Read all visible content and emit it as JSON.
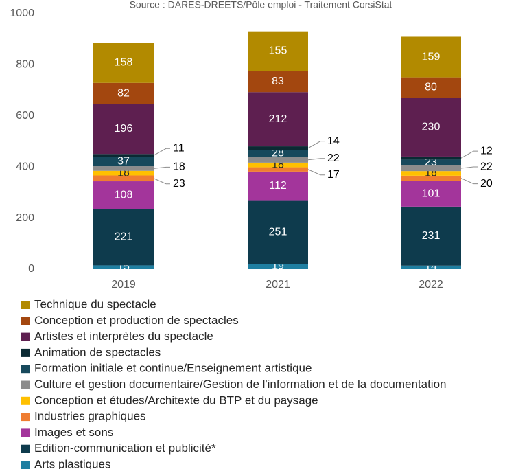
{
  "chart_data": {
    "type": "stacked_bar",
    "subtitle": "Source : DARES-DREETS/Pôle emploi - Traitement CorsiStat",
    "categories": [
      "2019",
      "2021",
      "2022"
    ],
    "ylim": [
      0,
      1000
    ],
    "yticks": [
      0,
      200,
      400,
      600,
      800,
      1000
    ],
    "series": [
      {
        "name": "Technique du spectacle",
        "color": "#b28a00",
        "values": [
          158,
          155,
          159
        ]
      },
      {
        "name": "Conception et production de spectacles",
        "color": "#a3470f",
        "values": [
          82,
          83,
          80
        ]
      },
      {
        "name": "Artistes et interprètes du spectacle",
        "color": "#5e1f50",
        "values": [
          196,
          212,
          230
        ]
      },
      {
        "name": "Animation de spectacles",
        "color": "#0b2a33",
        "values": [
          11,
          14,
          12
        ]
      },
      {
        "name": "Formation initiale et continue/Enseignement artistique",
        "color": "#17495c",
        "values": [
          37,
          28,
          23
        ]
      },
      {
        "name": "Culture et gestion documentaire/Gestion de l'information et de la documentation",
        "color": "#8c8c8c",
        "values": [
          18,
          22,
          22
        ]
      },
      {
        "name": "Conception et études/Architexte du BTP et du paysage",
        "color": "#ffc000",
        "values": [
          18,
          18,
          18
        ]
      },
      {
        "name": "Industries graphiques",
        "color": "#ef7d31",
        "values": [
          23,
          17,
          20
        ]
      },
      {
        "name": "Images et sons",
        "color": "#a3359b",
        "values": [
          108,
          112,
          101
        ]
      },
      {
        "name": "Edition-communication et publicité*",
        "color": "#0e3b4d",
        "values": [
          221,
          251,
          231
        ]
      },
      {
        "name": "Arts plastiques",
        "color": "#1f7fa1",
        "values": [
          15,
          19,
          14
        ]
      }
    ]
  }
}
